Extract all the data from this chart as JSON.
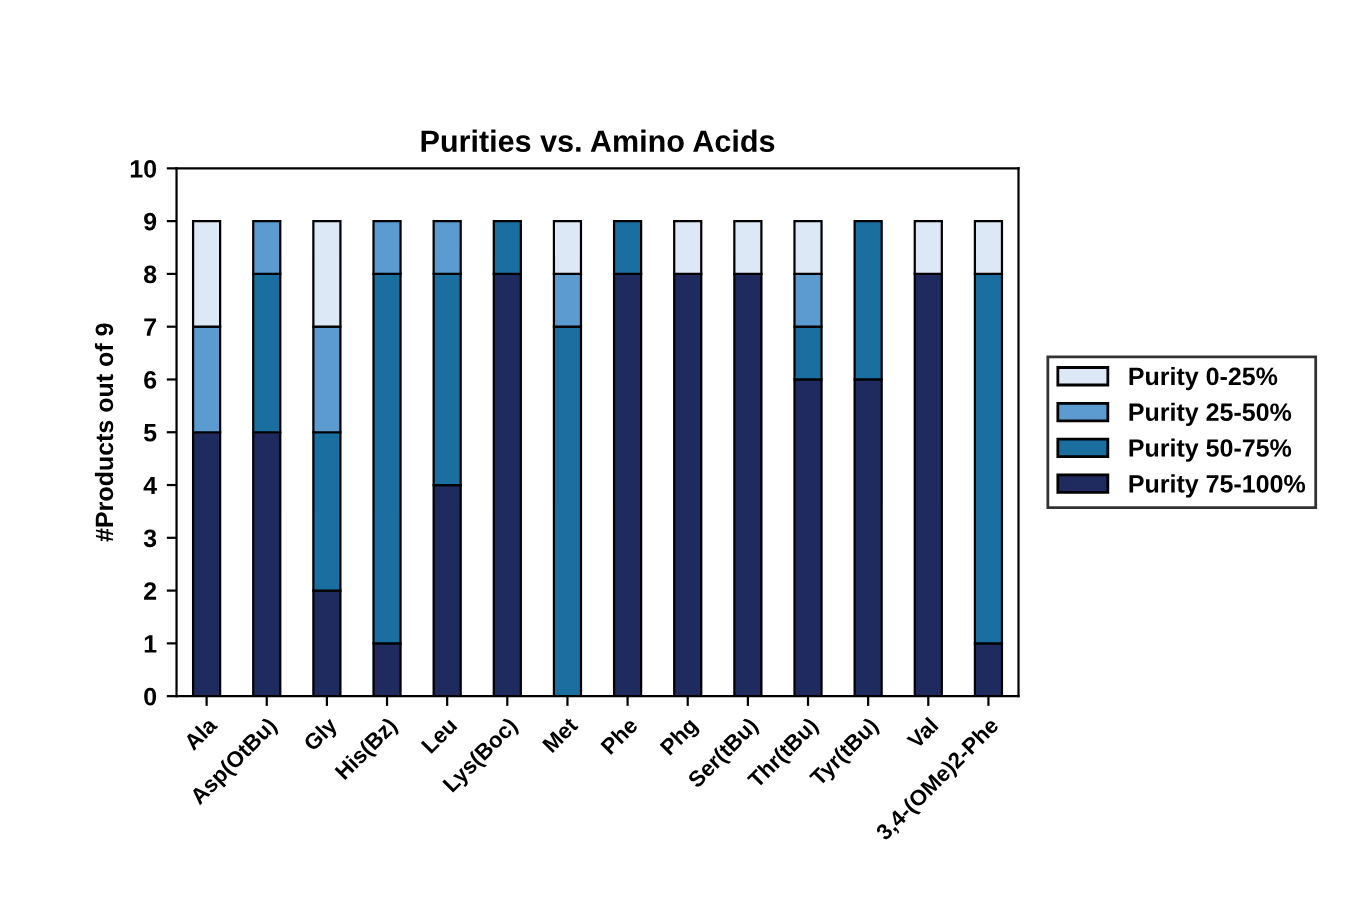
{
  "chart_data": {
    "type": "bar",
    "title": "Purities vs. Amino Acids",
    "ylabel": "#Products out of 9",
    "categories": [
      "Ala",
      "Asp(OtBu)",
      "Gly",
      "His(Bz)",
      "Leu",
      "Lys(Boc)",
      "Met",
      "Phe",
      "Phg",
      "Ser(tBu)",
      "Thr(tBu)",
      "Tyr(tBu)",
      "Val",
      "3,4-(OMe)2-Phe"
    ],
    "stacked": true,
    "series": [
      {
        "name": "Purity 75-100%",
        "color": "#1f2a5e",
        "values": [
          5,
          5,
          2,
          1,
          4,
          8,
          0,
          8,
          8,
          8,
          6,
          6,
          8,
          1
        ]
      },
      {
        "name": "Purity 50-75%",
        "color": "#1a6fa0",
        "values": [
          0,
          3,
          3,
          7,
          4,
          1,
          7,
          1,
          0,
          0,
          1,
          3,
          0,
          7
        ]
      },
      {
        "name": "Purity 25-50%",
        "color": "#5b9bd0",
        "values": [
          2,
          1,
          2,
          1,
          1,
          0,
          1,
          0,
          0,
          0,
          1,
          0,
          0,
          0
        ]
      },
      {
        "name": "Purity 0-25%",
        "color": "#dce8f5",
        "values": [
          2,
          0,
          2,
          0,
          0,
          0,
          1,
          0,
          1,
          1,
          1,
          0,
          1,
          1
        ]
      }
    ],
    "ylim": [
      0,
      10
    ],
    "yticks": [
      0,
      1,
      2,
      3,
      4,
      5,
      6,
      7,
      8,
      9,
      10
    ],
    "grid": false,
    "legend": "right"
  }
}
